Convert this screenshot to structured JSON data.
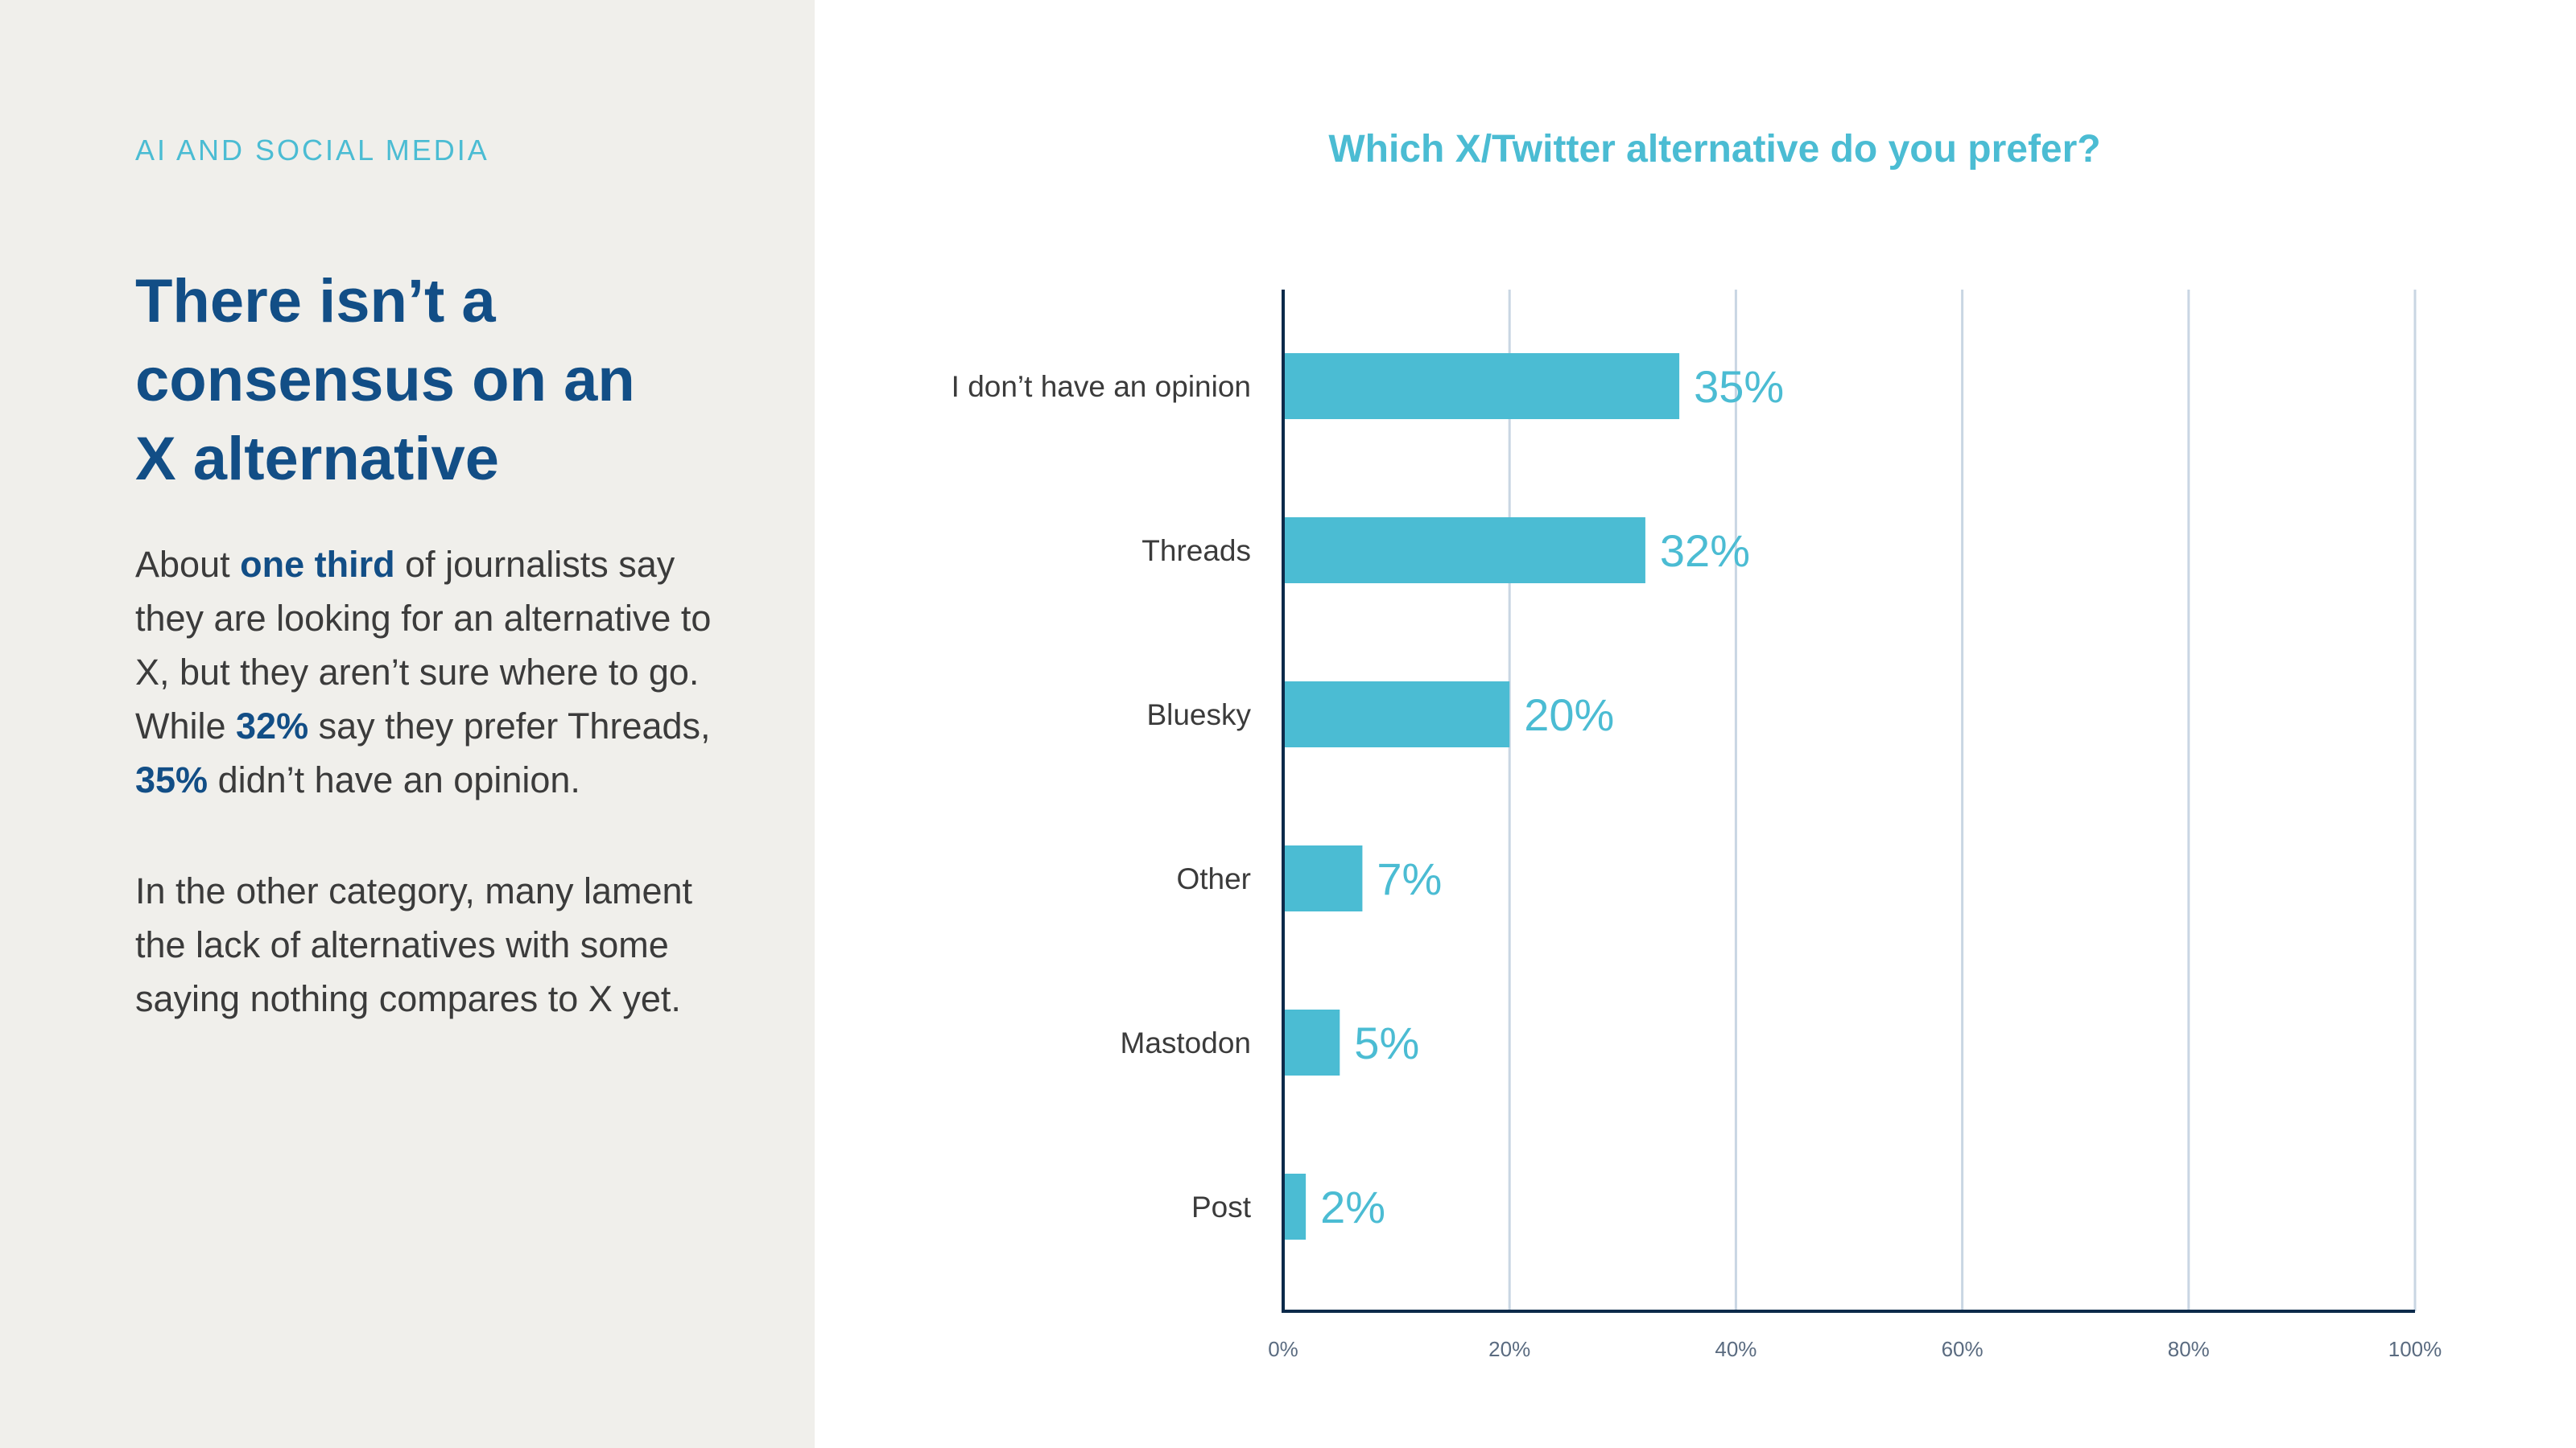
{
  "left_panel": {
    "eyebrow": "AI AND SOCIAL MEDIA",
    "headline": [
      "There isn’t a",
      "consensus on an",
      "X alternative"
    ],
    "paragraph1": {
      "t1": "About ",
      "h1": "one third",
      "t2": " of journalists say they are looking for an alternative to X, but they aren’t sure where to go. While ",
      "h2": "32%",
      "t3": " say they prefer Threads, ",
      "h3": "35%",
      "t4": " didn’t have an opinion."
    },
    "paragraph2": "In the other category, many lament the lack of alternatives with some saying nothing compares to X yet."
  },
  "colors": {
    "bar": "#4bbcd3",
    "headline": "#124e86",
    "panel_bg": "#f0efeb",
    "gridline": "#c9d6e3",
    "axis": "#0b2a4a"
  },
  "chart_data": {
    "type": "bar",
    "orientation": "horizontal",
    "title": "Which X/Twitter alternative do you prefer?",
    "categories": [
      "I don’t have an opinion",
      "Threads",
      "Bluesky",
      "Other",
      "Mastodon",
      "Post"
    ],
    "values": [
      35,
      32,
      20,
      7,
      5,
      2
    ],
    "value_labels": [
      "35%",
      "32%",
      "20%",
      "7%",
      "5%",
      "2%"
    ],
    "xlim": [
      0,
      100
    ],
    "x_ticks": [
      0,
      20,
      40,
      60,
      80,
      100
    ],
    "x_tick_labels": [
      "0%",
      "20%",
      "40%",
      "60%",
      "80%",
      "100%"
    ],
    "grid": true
  }
}
